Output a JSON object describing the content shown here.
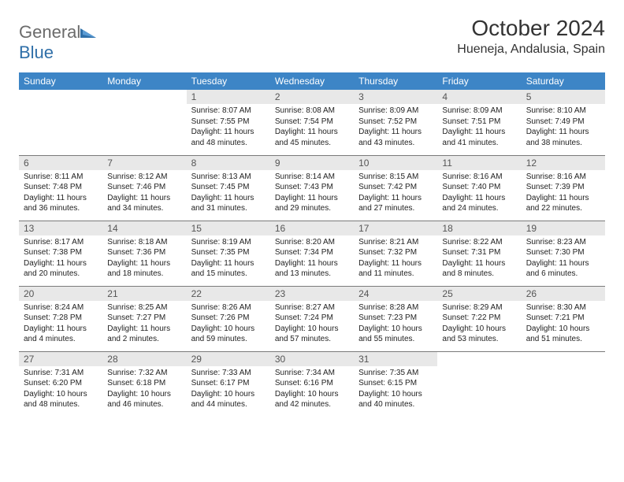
{
  "logo": {
    "text1": "General",
    "text2": "Blue"
  },
  "title": "October 2024",
  "location": "Hueneja, Andalusia, Spain",
  "day_headers": [
    "Sunday",
    "Monday",
    "Tuesday",
    "Wednesday",
    "Thursday",
    "Friday",
    "Saturday"
  ],
  "colors": {
    "header_bg": "#3d85c6",
    "header_fg": "#ffffff",
    "daynum_bg": "#e8e8e8",
    "border": "#7a7a7a",
    "logo_gray": "#6b6b6b",
    "logo_blue": "#2f6fa8"
  },
  "weeks": [
    [
      {
        "n": "",
        "sr": "",
        "ss": "",
        "dl": ""
      },
      {
        "n": "",
        "sr": "",
        "ss": "",
        "dl": ""
      },
      {
        "n": "1",
        "sr": "Sunrise: 8:07 AM",
        "ss": "Sunset: 7:55 PM",
        "dl": "Daylight: 11 hours and 48 minutes."
      },
      {
        "n": "2",
        "sr": "Sunrise: 8:08 AM",
        "ss": "Sunset: 7:54 PM",
        "dl": "Daylight: 11 hours and 45 minutes."
      },
      {
        "n": "3",
        "sr": "Sunrise: 8:09 AM",
        "ss": "Sunset: 7:52 PM",
        "dl": "Daylight: 11 hours and 43 minutes."
      },
      {
        "n": "4",
        "sr": "Sunrise: 8:09 AM",
        "ss": "Sunset: 7:51 PM",
        "dl": "Daylight: 11 hours and 41 minutes."
      },
      {
        "n": "5",
        "sr": "Sunrise: 8:10 AM",
        "ss": "Sunset: 7:49 PM",
        "dl": "Daylight: 11 hours and 38 minutes."
      }
    ],
    [
      {
        "n": "6",
        "sr": "Sunrise: 8:11 AM",
        "ss": "Sunset: 7:48 PM",
        "dl": "Daylight: 11 hours and 36 minutes."
      },
      {
        "n": "7",
        "sr": "Sunrise: 8:12 AM",
        "ss": "Sunset: 7:46 PM",
        "dl": "Daylight: 11 hours and 34 minutes."
      },
      {
        "n": "8",
        "sr": "Sunrise: 8:13 AM",
        "ss": "Sunset: 7:45 PM",
        "dl": "Daylight: 11 hours and 31 minutes."
      },
      {
        "n": "9",
        "sr": "Sunrise: 8:14 AM",
        "ss": "Sunset: 7:43 PM",
        "dl": "Daylight: 11 hours and 29 minutes."
      },
      {
        "n": "10",
        "sr": "Sunrise: 8:15 AM",
        "ss": "Sunset: 7:42 PM",
        "dl": "Daylight: 11 hours and 27 minutes."
      },
      {
        "n": "11",
        "sr": "Sunrise: 8:16 AM",
        "ss": "Sunset: 7:40 PM",
        "dl": "Daylight: 11 hours and 24 minutes."
      },
      {
        "n": "12",
        "sr": "Sunrise: 8:16 AM",
        "ss": "Sunset: 7:39 PM",
        "dl": "Daylight: 11 hours and 22 minutes."
      }
    ],
    [
      {
        "n": "13",
        "sr": "Sunrise: 8:17 AM",
        "ss": "Sunset: 7:38 PM",
        "dl": "Daylight: 11 hours and 20 minutes."
      },
      {
        "n": "14",
        "sr": "Sunrise: 8:18 AM",
        "ss": "Sunset: 7:36 PM",
        "dl": "Daylight: 11 hours and 18 minutes."
      },
      {
        "n": "15",
        "sr": "Sunrise: 8:19 AM",
        "ss": "Sunset: 7:35 PM",
        "dl": "Daylight: 11 hours and 15 minutes."
      },
      {
        "n": "16",
        "sr": "Sunrise: 8:20 AM",
        "ss": "Sunset: 7:34 PM",
        "dl": "Daylight: 11 hours and 13 minutes."
      },
      {
        "n": "17",
        "sr": "Sunrise: 8:21 AM",
        "ss": "Sunset: 7:32 PM",
        "dl": "Daylight: 11 hours and 11 minutes."
      },
      {
        "n": "18",
        "sr": "Sunrise: 8:22 AM",
        "ss": "Sunset: 7:31 PM",
        "dl": "Daylight: 11 hours and 8 minutes."
      },
      {
        "n": "19",
        "sr": "Sunrise: 8:23 AM",
        "ss": "Sunset: 7:30 PM",
        "dl": "Daylight: 11 hours and 6 minutes."
      }
    ],
    [
      {
        "n": "20",
        "sr": "Sunrise: 8:24 AM",
        "ss": "Sunset: 7:28 PM",
        "dl": "Daylight: 11 hours and 4 minutes."
      },
      {
        "n": "21",
        "sr": "Sunrise: 8:25 AM",
        "ss": "Sunset: 7:27 PM",
        "dl": "Daylight: 11 hours and 2 minutes."
      },
      {
        "n": "22",
        "sr": "Sunrise: 8:26 AM",
        "ss": "Sunset: 7:26 PM",
        "dl": "Daylight: 10 hours and 59 minutes."
      },
      {
        "n": "23",
        "sr": "Sunrise: 8:27 AM",
        "ss": "Sunset: 7:24 PM",
        "dl": "Daylight: 10 hours and 57 minutes."
      },
      {
        "n": "24",
        "sr": "Sunrise: 8:28 AM",
        "ss": "Sunset: 7:23 PM",
        "dl": "Daylight: 10 hours and 55 minutes."
      },
      {
        "n": "25",
        "sr": "Sunrise: 8:29 AM",
        "ss": "Sunset: 7:22 PM",
        "dl": "Daylight: 10 hours and 53 minutes."
      },
      {
        "n": "26",
        "sr": "Sunrise: 8:30 AM",
        "ss": "Sunset: 7:21 PM",
        "dl": "Daylight: 10 hours and 51 minutes."
      }
    ],
    [
      {
        "n": "27",
        "sr": "Sunrise: 7:31 AM",
        "ss": "Sunset: 6:20 PM",
        "dl": "Daylight: 10 hours and 48 minutes."
      },
      {
        "n": "28",
        "sr": "Sunrise: 7:32 AM",
        "ss": "Sunset: 6:18 PM",
        "dl": "Daylight: 10 hours and 46 minutes."
      },
      {
        "n": "29",
        "sr": "Sunrise: 7:33 AM",
        "ss": "Sunset: 6:17 PM",
        "dl": "Daylight: 10 hours and 44 minutes."
      },
      {
        "n": "30",
        "sr": "Sunrise: 7:34 AM",
        "ss": "Sunset: 6:16 PM",
        "dl": "Daylight: 10 hours and 42 minutes."
      },
      {
        "n": "31",
        "sr": "Sunrise: 7:35 AM",
        "ss": "Sunset: 6:15 PM",
        "dl": "Daylight: 10 hours and 40 minutes."
      },
      {
        "n": "",
        "sr": "",
        "ss": "",
        "dl": ""
      },
      {
        "n": "",
        "sr": "",
        "ss": "",
        "dl": ""
      }
    ]
  ]
}
